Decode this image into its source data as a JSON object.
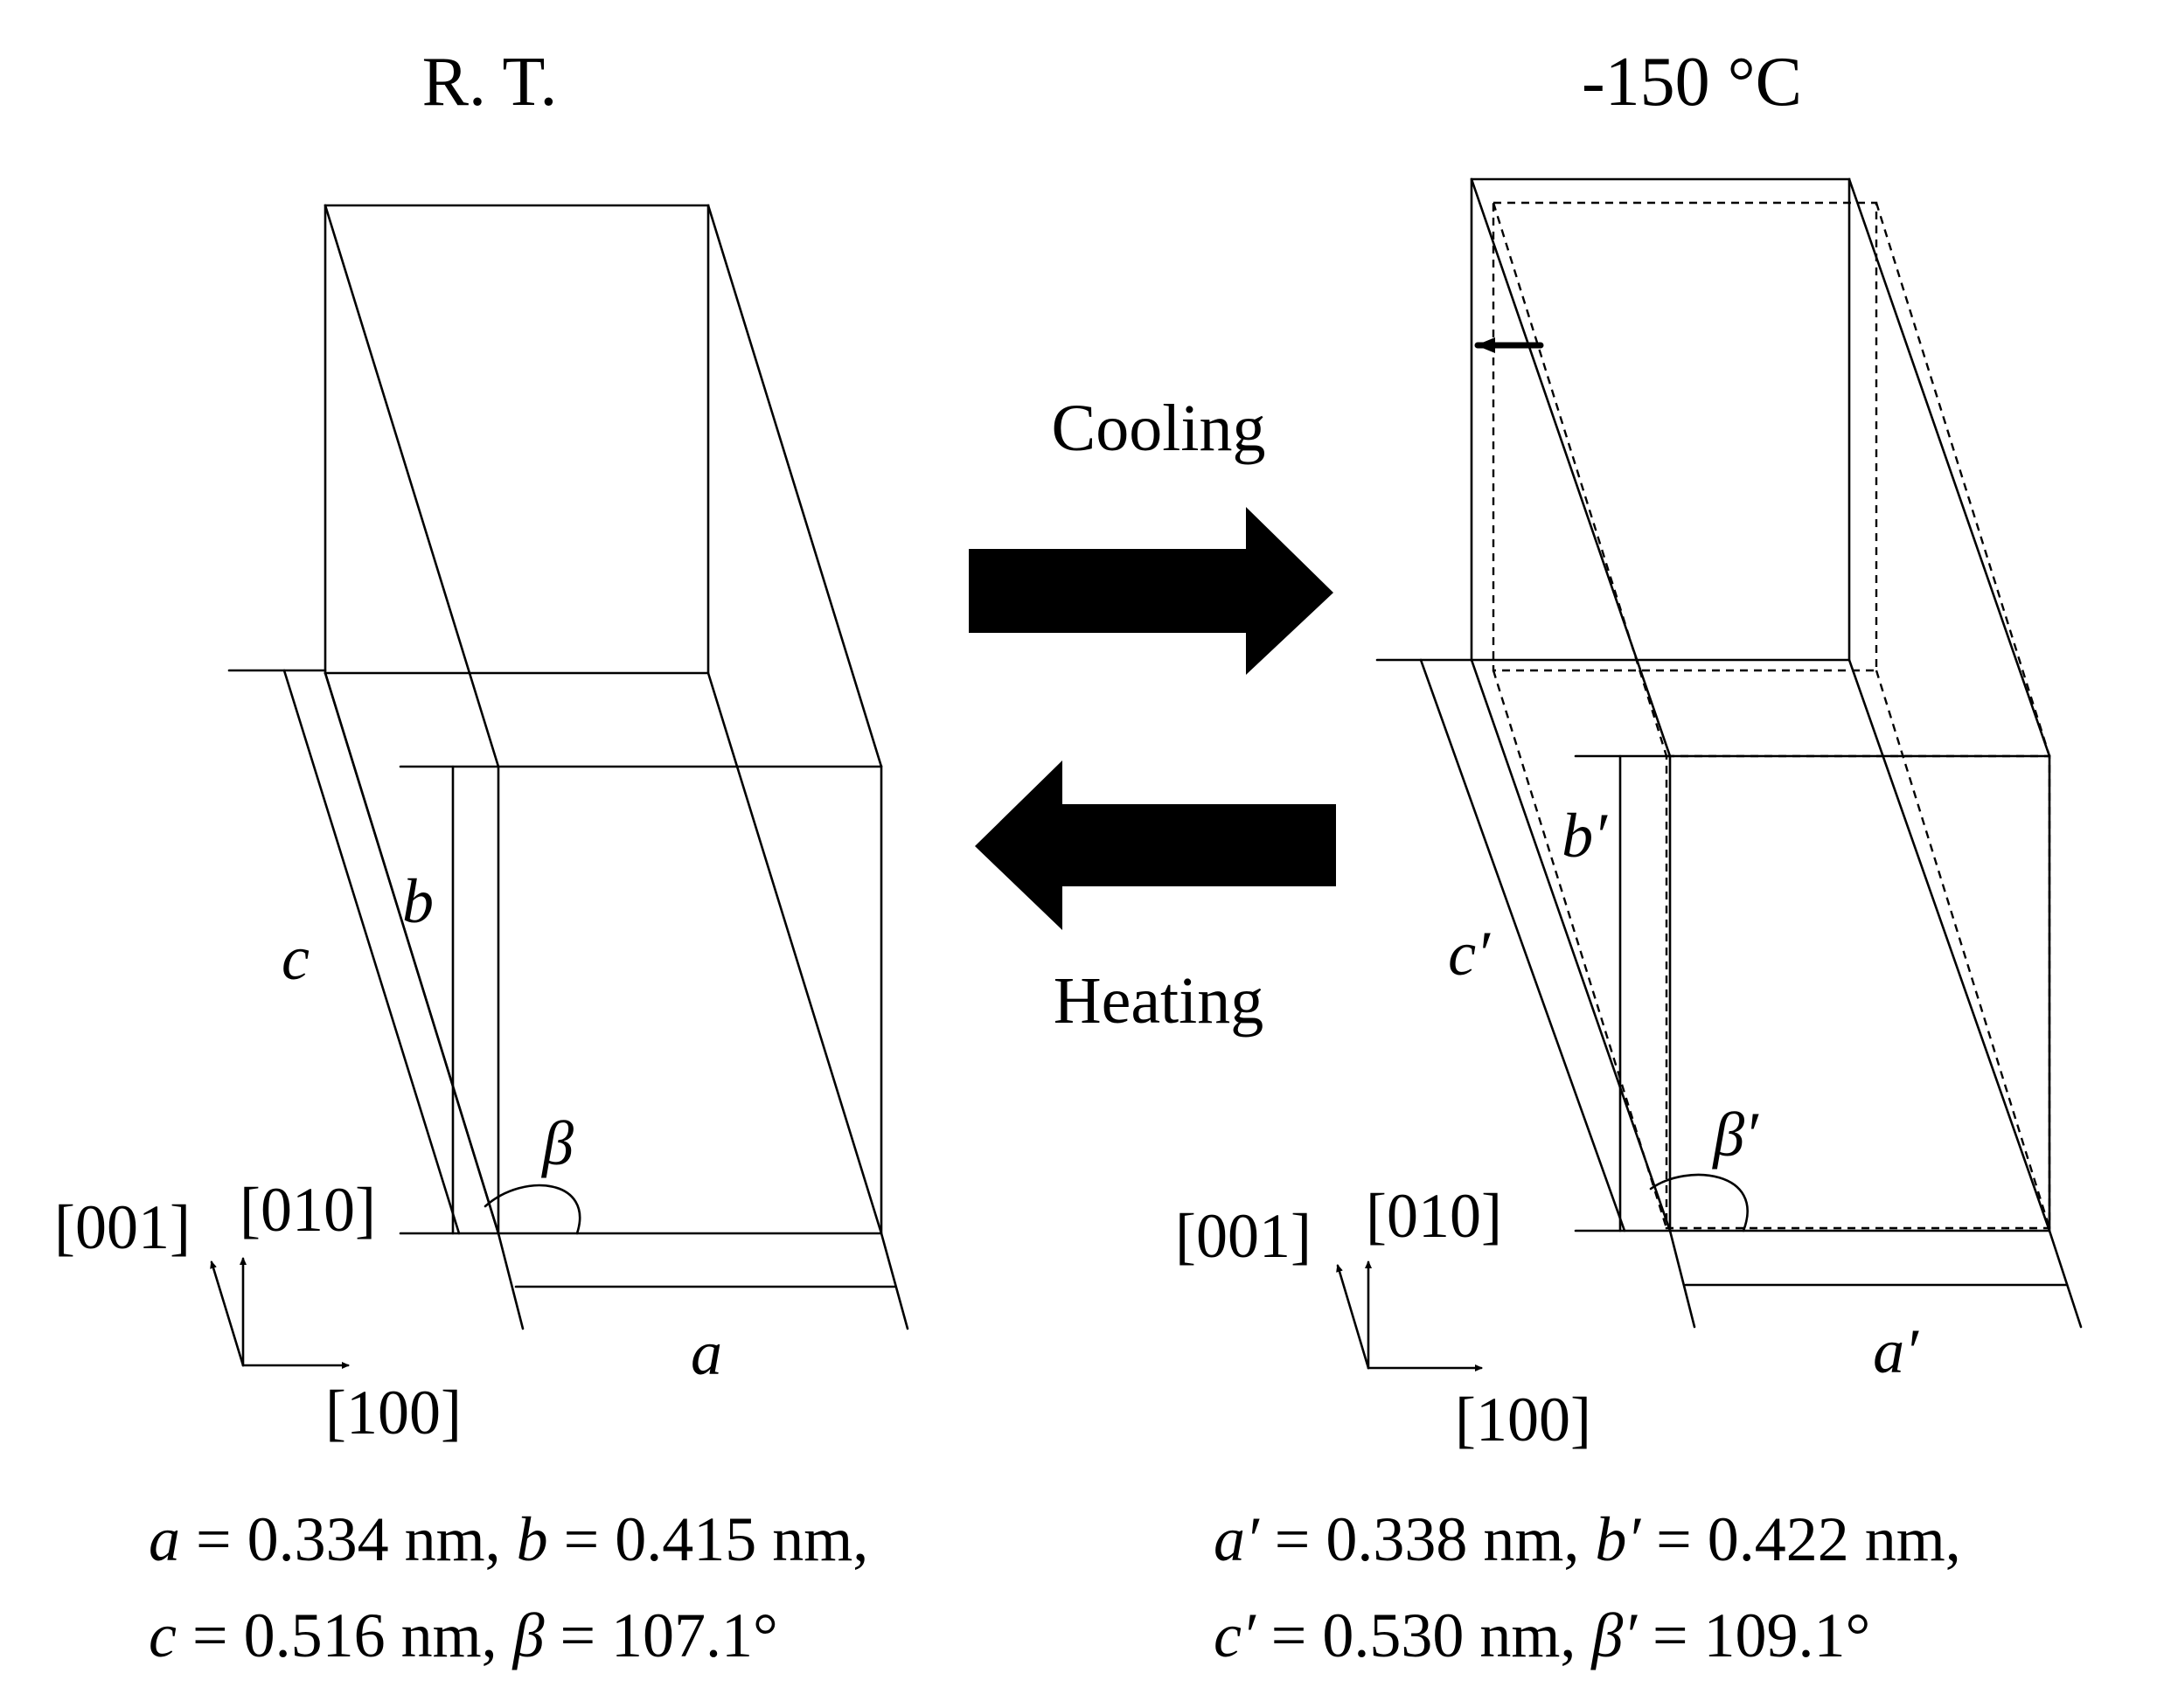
{
  "left_panel": {
    "title": "R. T.",
    "label_a": "a",
    "label_b": "b",
    "label_c": "c",
    "label_beta": "β",
    "dir_100": "[100]",
    "dir_010": "[010]",
    "dir_001": "[001]",
    "params_line1": {
      "a_sym": "a",
      "a_val": " = 0.334 nm, ",
      "b_sym": "b",
      "b_val": " = 0.415 nm,"
    },
    "params_line2": {
      "c_sym": "c",
      "c_val": " = 0.516 nm, ",
      "beta_sym": "β",
      "beta_val": " = 107.1°"
    }
  },
  "right_panel": {
    "title": "-150 °C",
    "label_a": "a′",
    "label_b": "b′",
    "label_c": "c′",
    "label_beta": "β′",
    "dir_100": "[100]",
    "dir_010": "[010]",
    "dir_001": "[001]",
    "params_line1": {
      "a_sym": "a′",
      "a_val": " = 0.338 nm, ",
      "b_sym": "b′",
      "b_val": " = 0.422 nm,"
    },
    "params_line2": {
      "c_sym": "c′",
      "c_val": " = 0.530 nm, ",
      "beta_sym": "β′",
      "beta_val": " = 109.1°"
    }
  },
  "transition": {
    "cooling_label": "Cooling",
    "heating_label": "Heating"
  }
}
